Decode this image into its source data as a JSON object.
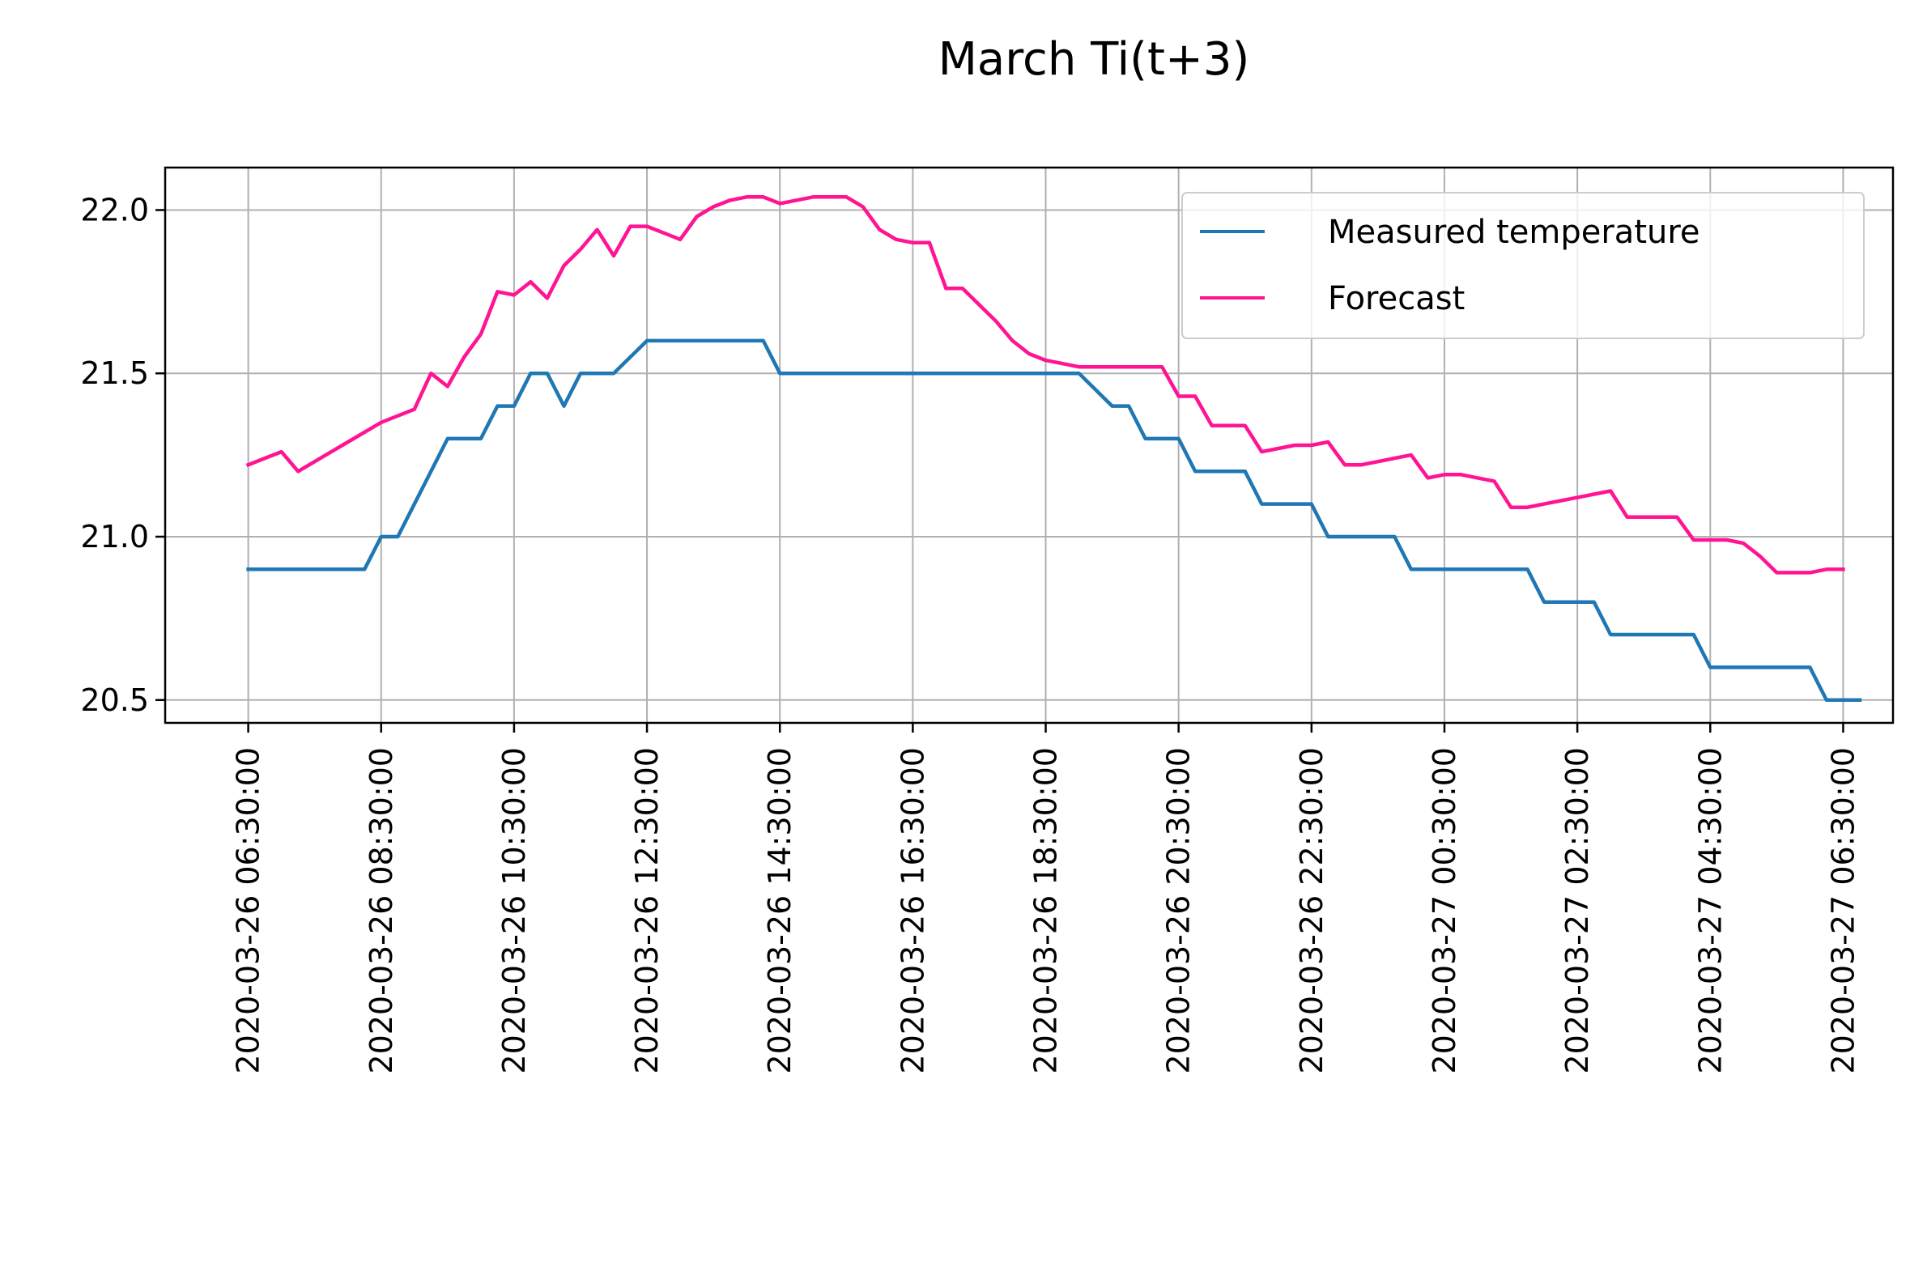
{
  "chart_data": {
    "type": "line",
    "title": "March Ti(t+3)",
    "xlabel": "",
    "ylabel": "",
    "ylim": [
      20.43,
      22.13
    ],
    "xlim_hours": [
      -1.25,
      24.75
    ],
    "grid": true,
    "legend_position": "top-right",
    "yticks": [
      20.5,
      21.0,
      21.5,
      22.0
    ],
    "ytick_labels": [
      "20.5",
      "21.0",
      "21.5",
      "22.0"
    ],
    "xticks_hours": [
      0,
      2,
      4,
      6,
      8,
      10,
      12,
      14,
      16,
      18,
      20,
      22,
      24
    ],
    "xtick_labels": [
      "2020-03-26 06:30:00",
      "2020-03-26 08:30:00",
      "2020-03-26 10:30:00",
      "2020-03-26 12:30:00",
      "2020-03-26 14:30:00",
      "2020-03-26 16:30:00",
      "2020-03-26 18:30:00",
      "2020-03-26 20:30:00",
      "2020-03-26 22:30:00",
      "2020-03-27 00:30:00",
      "2020-03-27 02:30:00",
      "2020-03-27 04:30:00",
      "2020-03-27 06:30:00"
    ],
    "x_unit": "hours since 2020-03-26 06:30:00",
    "series": [
      {
        "name": "Measured temperature",
        "color": "#1f77b4",
        "x": [
          0,
          1.75,
          2.0,
          2.25,
          3.0,
          3.5,
          3.75,
          4.0,
          4.25,
          4.5,
          4.75,
          5.0,
          5.25,
          5.5,
          6.0,
          6.25,
          7.5,
          7.75,
          8.0,
          8.75,
          9.0,
          10.75,
          11.0,
          12.5,
          13.0,
          13.25,
          13.5,
          13.75,
          14.0,
          14.25,
          15.0,
          15.25,
          16.0,
          16.25,
          17.25,
          17.5,
          18.5,
          18.75,
          19.25,
          19.5,
          20.25,
          20.5,
          21.0,
          21.25,
          21.75,
          22.0,
          22.5,
          22.75,
          23.25,
          23.5,
          23.75,
          24.0,
          24.25
        ],
        "y": [
          20.9,
          20.9,
          21.0,
          21.0,
          21.3,
          21.3,
          21.4,
          21.4,
          21.5,
          21.5,
          21.4,
          21.5,
          21.5,
          21.5,
          21.6,
          21.6,
          21.6,
          21.6,
          21.5,
          21.5,
          21.5,
          21.5,
          21.5,
          21.5,
          21.4,
          21.4,
          21.3,
          21.3,
          21.3,
          21.2,
          21.2,
          21.1,
          21.1,
          21.0,
          21.0,
          20.9,
          20.9,
          20.9,
          20.9,
          20.8,
          20.8,
          20.7,
          20.7,
          20.7,
          20.7,
          20.6,
          20.6,
          20.6,
          20.6,
          20.6,
          20.5,
          20.5,
          20.5
        ]
      },
      {
        "name": "Forecast",
        "color": "#ff1493",
        "x": [
          0,
          0.25,
          0.5,
          0.75,
          1.0,
          1.25,
          1.5,
          1.75,
          2.0,
          2.25,
          2.5,
          2.75,
          3.0,
          3.25,
          3.5,
          3.75,
          4.0,
          4.25,
          4.5,
          4.75,
          5.0,
          5.25,
          5.5,
          5.75,
          6.0,
          6.25,
          6.5,
          6.75,
          7.0,
          7.25,
          7.5,
          7.75,
          8.0,
          8.25,
          8.5,
          8.75,
          9.0,
          9.25,
          9.5,
          9.75,
          10.0,
          10.25,
          10.5,
          10.75,
          11.0,
          11.25,
          11.5,
          11.75,
          12.0,
          12.25,
          12.5,
          12.75,
          13.0,
          13.25,
          13.5,
          13.75,
          14.0,
          14.25,
          14.5,
          14.75,
          15.0,
          15.25,
          15.5,
          15.75,
          16.0,
          16.25,
          16.5,
          16.75,
          17.0,
          17.25,
          17.5,
          17.75,
          18.0,
          18.25,
          18.5,
          18.75,
          19.0,
          19.25,
          19.5,
          19.75,
          20.0,
          20.25,
          20.5,
          20.75,
          21.0,
          21.25,
          21.5,
          21.75,
          22.0,
          22.25,
          22.5,
          22.75,
          23.0,
          23.25,
          23.5,
          23.75,
          24.0
        ],
        "y": [
          21.22,
          21.24,
          21.26,
          21.2,
          21.23,
          21.26,
          21.29,
          21.32,
          21.35,
          21.37,
          21.39,
          21.5,
          21.46,
          21.55,
          21.62,
          21.75,
          21.74,
          21.78,
          21.73,
          21.83,
          21.88,
          21.94,
          21.86,
          21.95,
          21.95,
          21.93,
          21.91,
          21.98,
          22.01,
          22.03,
          22.04,
          22.04,
          22.02,
          22.03,
          22.04,
          22.04,
          22.04,
          22.01,
          21.94,
          21.91,
          21.9,
          21.9,
          21.76,
          21.76,
          21.71,
          21.66,
          21.6,
          21.56,
          21.54,
          21.53,
          21.52,
          21.52,
          21.52,
          21.52,
          21.52,
          21.52,
          21.43,
          21.43,
          21.34,
          21.34,
          21.34,
          21.26,
          21.27,
          21.28,
          21.28,
          21.29,
          21.22,
          21.22,
          21.23,
          21.24,
          21.25,
          21.18,
          21.19,
          21.19,
          21.18,
          21.17,
          21.09,
          21.09,
          21.1,
          21.11,
          21.12,
          21.13,
          21.14,
          21.06,
          21.06,
          21.06,
          21.06,
          20.99,
          20.99,
          20.99,
          20.98,
          20.94,
          20.89,
          20.89,
          20.89,
          20.9,
          20.9
        ]
      }
    ]
  }
}
